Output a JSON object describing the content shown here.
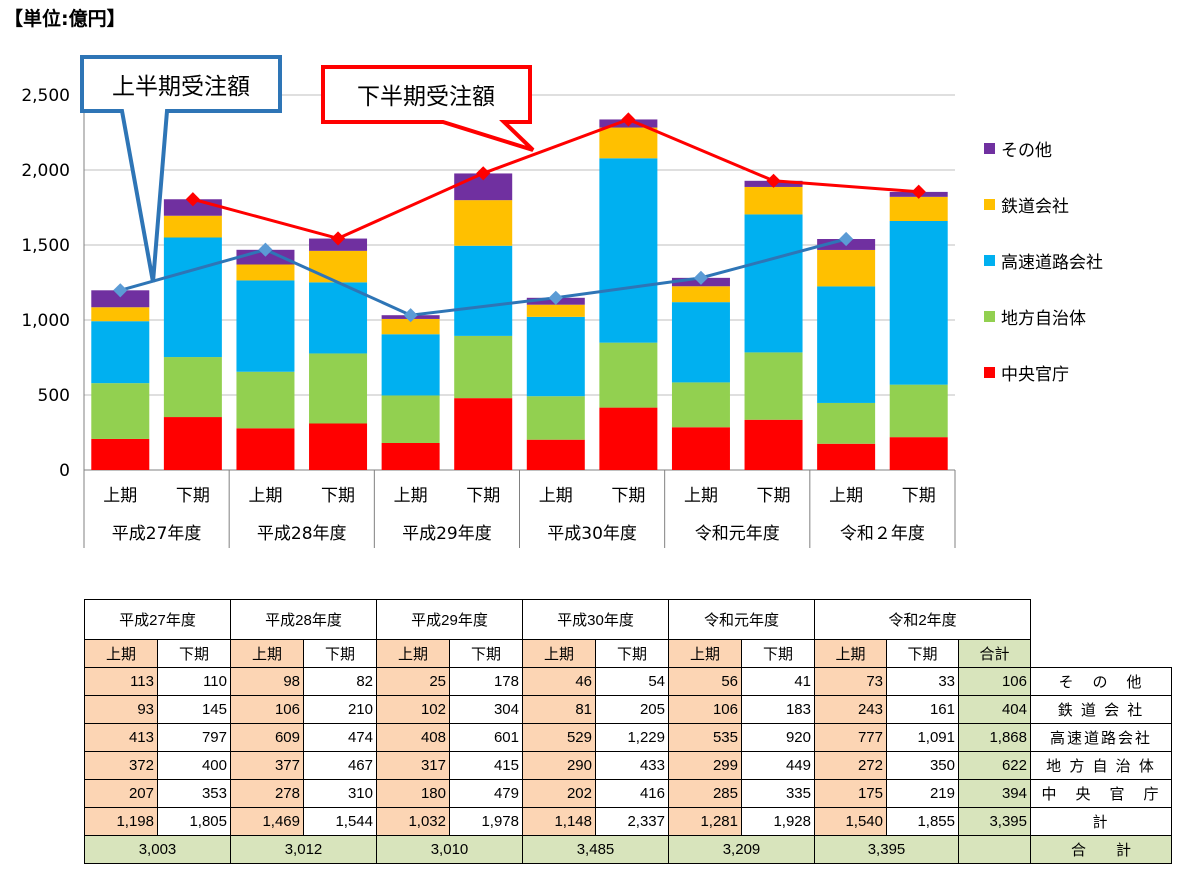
{
  "unit_label": "【単位:億円】",
  "chart_data": {
    "type": "bar",
    "stacked": true,
    "ylim": [
      0,
      2500
    ],
    "yticks": [
      0,
      500,
      1000,
      1500,
      2000,
      2500
    ],
    "ytick_labels": [
      "0",
      "500",
      "1,000",
      "1,500",
      "2,000",
      "2,500"
    ],
    "categories": [
      "上期",
      "下期",
      "上期",
      "下期",
      "上期",
      "下期",
      "上期",
      "下期",
      "上期",
      "下期",
      "上期",
      "下期"
    ],
    "groups": [
      "平成27年度",
      "平成28年度",
      "平成29年度",
      "平成30年度",
      "令和元年度",
      "令和２年度"
    ],
    "series": [
      {
        "name": "中央官庁",
        "color": "#ff0000",
        "values": [
          207,
          353,
          278,
          310,
          180,
          479,
          202,
          416,
          285,
          335,
          175,
          219
        ]
      },
      {
        "name": "地方自治体",
        "color": "#92d050",
        "values": [
          372,
          400,
          377,
          467,
          317,
          415,
          290,
          433,
          299,
          449,
          272,
          350
        ]
      },
      {
        "name": "高速道路会社",
        "color": "#00b0f0",
        "values": [
          413,
          797,
          609,
          474,
          408,
          601,
          529,
          1229,
          535,
          920,
          777,
          1091
        ]
      },
      {
        "name": "鉄道会社",
        "color": "#ffc000",
        "values": [
          93,
          145,
          106,
          210,
          102,
          304,
          81,
          205,
          106,
          183,
          243,
          161
        ]
      },
      {
        "name": "その他",
        "color": "#7030a0",
        "values": [
          113,
          110,
          98,
          82,
          25,
          178,
          46,
          54,
          56,
          41,
          73,
          33
        ]
      }
    ],
    "lines": [
      {
        "name": "上半期受注額",
        "color": "#2e75b6",
        "marker_color": "#5b9bd5",
        "values": [
          1198,
          1469,
          1032,
          1148,
          1281,
          1540
        ]
      },
      {
        "name": "下半期受注額",
        "color": "#ff0000",
        "marker_color": "#ff0000",
        "values": [
          1805,
          1544,
          1978,
          2337,
          1928,
          1855
        ]
      }
    ],
    "callouts": {
      "first_half": "上半期受注額",
      "second_half": "下半期受注額"
    }
  },
  "legend": [
    {
      "label": "その他",
      "color": "#7030a0"
    },
    {
      "label": "鉄道会社",
      "color": "#ffc000"
    },
    {
      "label": "高速道路会社",
      "color": "#00b0f0"
    },
    {
      "label": "地方自治体",
      "color": "#92d050"
    },
    {
      "label": "中央官庁",
      "color": "#ff0000"
    }
  ],
  "table": {
    "years": [
      "平成27年度",
      "平成28年度",
      "平成29年度",
      "平成30年度",
      "令和元年度",
      "令和2年度"
    ],
    "half_labels": [
      "上期",
      "下期"
    ],
    "total_header": "合計",
    "rows": [
      {
        "label": "そ　の　他",
        "values": [
          "113",
          "110",
          "98",
          "82",
          "25",
          "178",
          "46",
          "54",
          "56",
          "41",
          "73",
          "33"
        ],
        "total": "106"
      },
      {
        "label": "鉄 道 会 社",
        "values": [
          "93",
          "145",
          "106",
          "210",
          "102",
          "304",
          "81",
          "205",
          "106",
          "183",
          "243",
          "161"
        ],
        "total": "404"
      },
      {
        "label": "高速道路会社",
        "values": [
          "413",
          "797",
          "609",
          "474",
          "408",
          "601",
          "529",
          "1,229",
          "535",
          "920",
          "777",
          "1,091"
        ],
        "total": "1,868"
      },
      {
        "label": "地 方 自 治 体",
        "values": [
          "372",
          "400",
          "377",
          "467",
          "317",
          "415",
          "290",
          "433",
          "299",
          "449",
          "272",
          "350"
        ],
        "total": "622"
      },
      {
        "label": "中　央　官　庁",
        "values": [
          "207",
          "353",
          "278",
          "310",
          "180",
          "479",
          "202",
          "416",
          "285",
          "335",
          "175",
          "219"
        ],
        "total": "394"
      },
      {
        "label": "計",
        "values": [
          "1,198",
          "1,805",
          "1,469",
          "1,544",
          "1,032",
          "1,978",
          "1,148",
          "2,337",
          "1,281",
          "1,928",
          "1,540",
          "1,855"
        ],
        "total": "3,395"
      }
    ],
    "year_totals": [
      "3,003",
      "3,012",
      "3,010",
      "3,485",
      "3,209",
      "3,395"
    ],
    "grand_label": "合　　計"
  }
}
